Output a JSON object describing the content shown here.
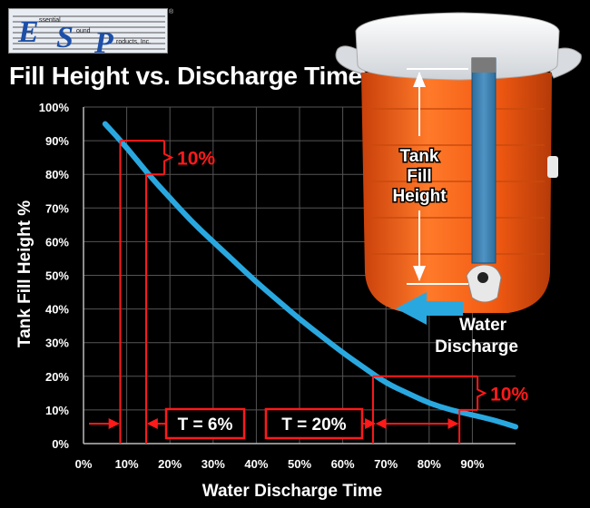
{
  "logo": {
    "line1": "ssential",
    "line2": "ound",
    "line3": "roducts, Inc.",
    "mark": "®"
  },
  "chart_data": {
    "type": "line",
    "title": "Fill Height vs. Discharge Time",
    "xlabel": "Water Discharge  Time",
    "ylabel": "Tank Fill Height %",
    "xlim": [
      0,
      100
    ],
    "ylim": [
      0,
      100
    ],
    "x_ticks": [
      "0%",
      "10%",
      "20%",
      "30%",
      "40%",
      "50%",
      "60%",
      "70%",
      "80%",
      "90%"
    ],
    "y_ticks": [
      "0%",
      "10%",
      "20%",
      "30%",
      "40%",
      "50%",
      "60%",
      "70%",
      "80%",
      "90%",
      "100%"
    ],
    "grid": true,
    "series": [
      {
        "color": "#29a8e0",
        "x": [
          5,
          10,
          15,
          20,
          25,
          30,
          35,
          40,
          45,
          50,
          55,
          60,
          65,
          70,
          75,
          80,
          85,
          90,
          95,
          100
        ],
        "y": [
          95,
          88,
          80,
          73,
          66,
          60,
          54,
          48,
          42.5,
          37,
          32,
          27,
          22.5,
          18,
          15,
          12,
          10,
          8.5,
          7,
          5
        ]
      }
    ],
    "annotations": {
      "top_label": "10%",
      "bottom_label": "10%",
      "t1_label": "T = 6%",
      "t2_label": "T = 20%",
      "top_interval": {
        "x1": 8.5,
        "x2": 14.5,
        "y1": 90,
        "y2": 80
      },
      "bottom_interval": {
        "x1": 67,
        "x2": 87,
        "y1": 20,
        "y2": 10
      },
      "color": "#ff1a1a"
    }
  },
  "cooler": {
    "label": "Tank Fill Height",
    "label_lines": [
      "Tank",
      "Fill",
      "Height"
    ],
    "discharge_lines": [
      "Water",
      "Discharge"
    ],
    "body_color": "#f25a12",
    "lid_color": "#f2f2f2"
  }
}
